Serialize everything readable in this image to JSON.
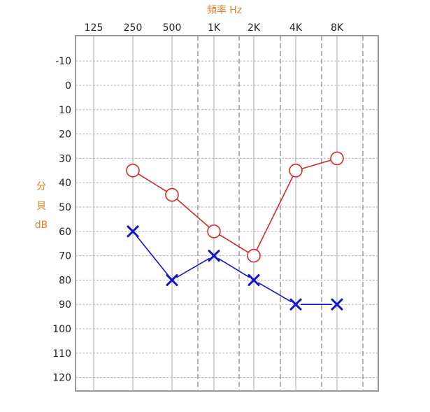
{
  "chart_data": {
    "type": "line",
    "title": "",
    "xlabel": "頻率 Hz",
    "ylabel": [
      "分",
      "貝",
      "dB"
    ],
    "categories": [
      "125",
      "250",
      "500",
      "1K",
      "2K",
      "4K",
      "8K"
    ],
    "yticks": [
      -10,
      0,
      10,
      20,
      30,
      40,
      50,
      60,
      70,
      80,
      90,
      100,
      110,
      120
    ],
    "ylim": [
      -20,
      125
    ],
    "y_inverted": true,
    "grid": true,
    "series": [
      {
        "marker": "circle",
        "color": "#d42a2a",
        "points": [
          {
            "x": "250",
            "y": 35
          },
          {
            "x": "500",
            "y": 45
          },
          {
            "x": "1K",
            "y": 60
          },
          {
            "x": "2K",
            "y": 70
          },
          {
            "x": "4K",
            "y": 35
          },
          {
            "x": "8K",
            "y": 30
          }
        ]
      },
      {
        "marker": "x",
        "color": "#1414cc",
        "points": [
          {
            "x": "250",
            "y": 60
          },
          {
            "x": "500",
            "y": 80
          },
          {
            "x": "1K",
            "y": 70
          },
          {
            "x": "2K",
            "y": 80
          },
          {
            "x": "4K",
            "y": 90
          },
          {
            "x": "8K",
            "y": 90
          }
        ]
      }
    ]
  }
}
